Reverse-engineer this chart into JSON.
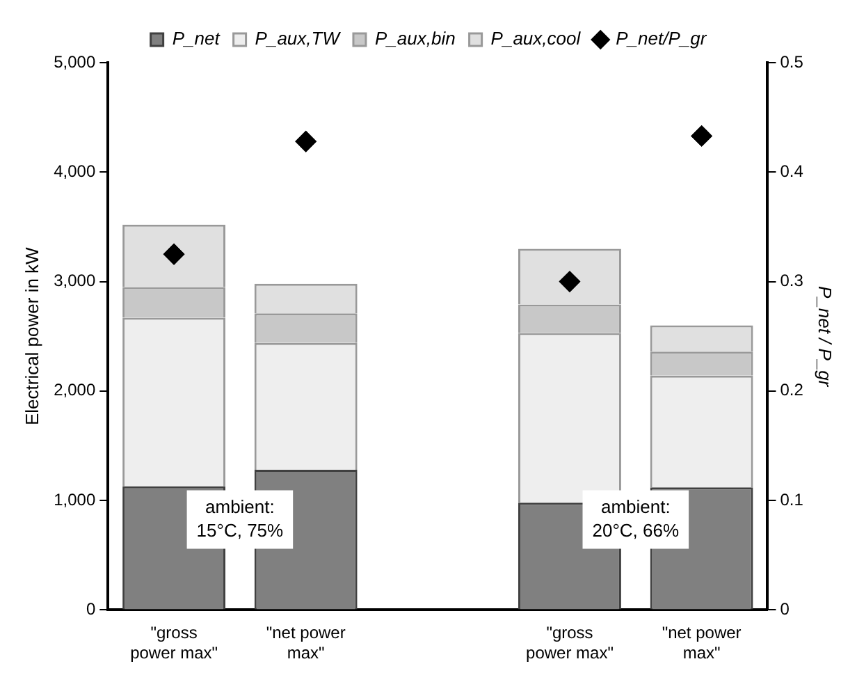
{
  "chart_data": {
    "type": "bar",
    "stacked": true,
    "ylabel": "Electrical power in kW",
    "y2label": "P_net / P_gr",
    "categories": [
      "\"gross power max\"",
      "\"net power max\"",
      null,
      "\"gross power max\"",
      "\"net power max\""
    ],
    "series": [
      {
        "name": "P_net",
        "color": "#808080",
        "values": [
          1130,
          1280,
          null,
          980,
          1120
        ]
      },
      {
        "name": "P_aux,TW",
        "color": "#eeeeee",
        "values": [
          1540,
          1160,
          null,
          1550,
          1020
        ]
      },
      {
        "name": "P_aux,bin",
        "color": "#c8c8c8",
        "values": [
          280,
          270,
          null,
          260,
          220
        ]
      },
      {
        "name": "P_aux,cool",
        "color": "#e0e0e0",
        "values": [
          570,
          270,
          null,
          510,
          240
        ]
      },
      {
        "name": "P_net/P_gr",
        "type": "scatter",
        "axis": "y2",
        "color": "#000000",
        "marker": "diamond",
        "values": [
          0.325,
          0.428,
          null,
          0.3,
          0.433
        ]
      }
    ],
    "ylim": [
      0,
      5000
    ],
    "yticks": [
      0,
      {
        "value": 1000,
        "label": "1,000"
      },
      {
        "value": 2000,
        "label": "2,000"
      },
      {
        "value": 3000,
        "label": "3,000"
      },
      {
        "value": 4000,
        "label": "4,000"
      },
      {
        "value": 5000,
        "label": "5,000"
      }
    ],
    "y2lim": [
      0,
      0.5
    ],
    "y2ticks": [
      0,
      0.1,
      0.2,
      0.3,
      0.4,
      0.5
    ],
    "annotations": [
      "ambient:\n15°C, 75%",
      "ambient:\n20°C, 66%"
    ],
    "legend": "top",
    "grid": false
  }
}
